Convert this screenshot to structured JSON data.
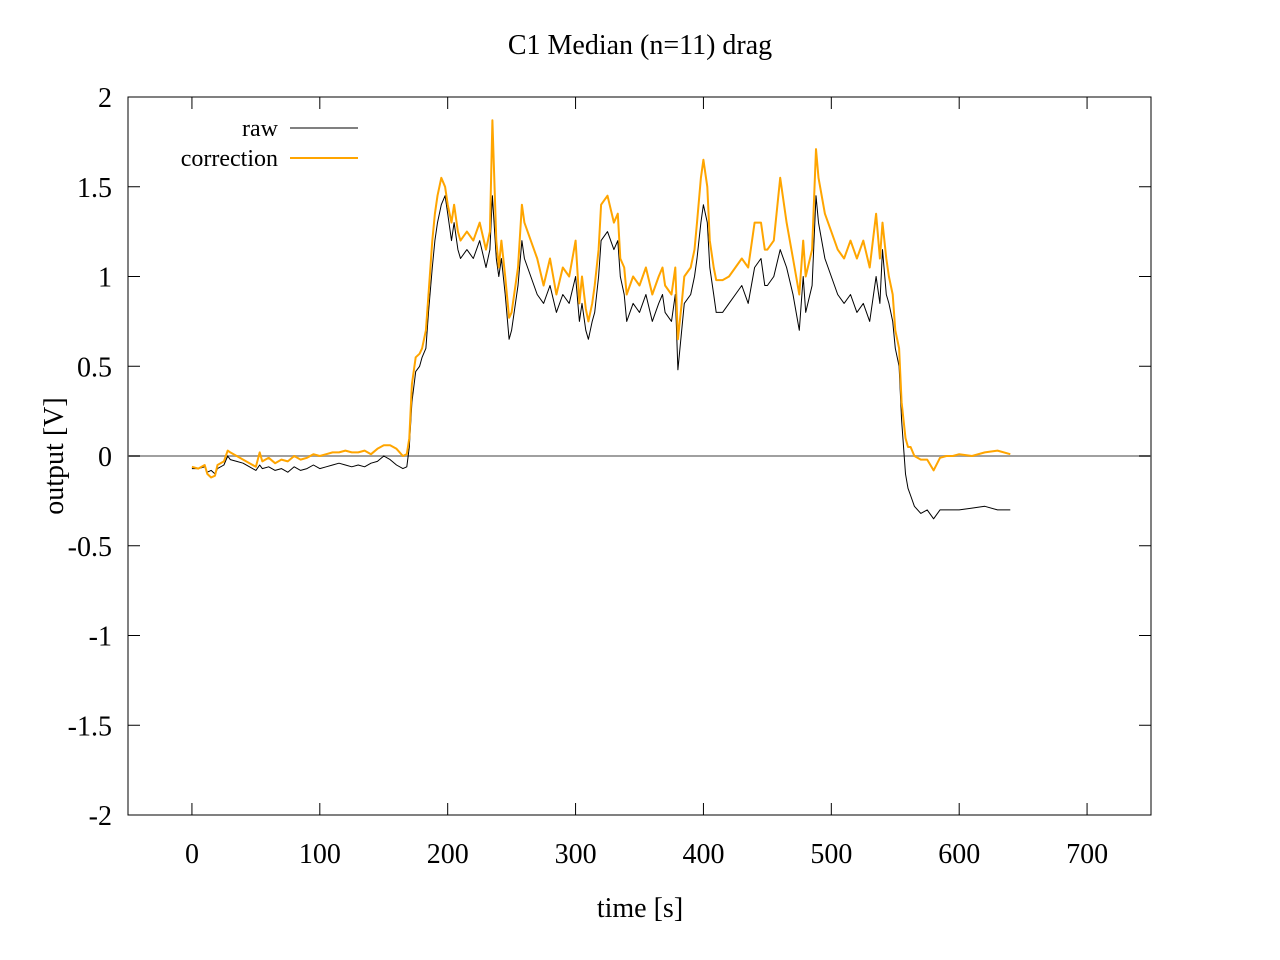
{
  "chart_data": {
    "type": "line",
    "title": "C1  Median (n=11) drag",
    "xlabel": "time [s]",
    "ylabel": "output [V]",
    "xlim": [
      -50,
      750
    ],
    "ylim": [
      -2,
      2
    ],
    "xticks": [
      0,
      100,
      200,
      300,
      400,
      500,
      600,
      700
    ],
    "yticks": [
      2,
      1.5,
      1,
      0.5,
      0,
      -0.5,
      -1,
      -1.5,
      -2
    ],
    "xtick_labels": [
      "0",
      "100",
      "200",
      "300",
      "400",
      "500",
      "600",
      "700"
    ],
    "ytick_labels": [
      "2",
      "1.5",
      "1",
      "0.5",
      "0",
      "-0.5",
      "-1",
      "-1.5",
      "-2"
    ],
    "grid": false,
    "zero_line": {
      "y": 0,
      "color": "#a0a0a0"
    },
    "legend_position": "top-left",
    "series": [
      {
        "name": "raw",
        "color": "#000000",
        "x": [
          0,
          5,
          10,
          12,
          15,
          18,
          20,
          25,
          28,
          30,
          35,
          40,
          45,
          50,
          53,
          55,
          60,
          65,
          70,
          75,
          80,
          85,
          90,
          95,
          100,
          105,
          110,
          115,
          120,
          125,
          130,
          135,
          140,
          145,
          150,
          155,
          160,
          165,
          168,
          170,
          172,
          175,
          178,
          180,
          183,
          185,
          188,
          190,
          192,
          195,
          198,
          200,
          203,
          205,
          208,
          210,
          215,
          220,
          225,
          230,
          233,
          235,
          238,
          240,
          242,
          245,
          248,
          250,
          255,
          258,
          260,
          265,
          270,
          275,
          280,
          285,
          290,
          295,
          300,
          303,
          305,
          308,
          310,
          313,
          315,
          318,
          320,
          325,
          330,
          333,
          335,
          338,
          340,
          345,
          350,
          355,
          360,
          365,
          368,
          370,
          375,
          378,
          380,
          383,
          385,
          390,
          393,
          395,
          398,
          400,
          403,
          405,
          408,
          410,
          415,
          420,
          425,
          430,
          435,
          440,
          445,
          448,
          450,
          455,
          460,
          465,
          470,
          475,
          478,
          480,
          485,
          488,
          490,
          495,
          500,
          505,
          510,
          515,
          520,
          525,
          530,
          535,
          538,
          540,
          543,
          545,
          548,
          550,
          553,
          555,
          558,
          560,
          562,
          565,
          570,
          575,
          580,
          585,
          590,
          595,
          600,
          610,
          620,
          630,
          640
        ],
        "y": [
          -0.07,
          -0.07,
          -0.06,
          -0.09,
          -0.08,
          -0.1,
          -0.07,
          -0.05,
          0.0,
          -0.02,
          -0.03,
          -0.04,
          -0.06,
          -0.08,
          -0.05,
          -0.07,
          -0.06,
          -0.08,
          -0.07,
          -0.09,
          -0.06,
          -0.08,
          -0.07,
          -0.05,
          -0.07,
          -0.06,
          -0.05,
          -0.04,
          -0.05,
          -0.06,
          -0.05,
          -0.06,
          -0.04,
          -0.03,
          0.0,
          -0.02,
          -0.05,
          -0.07,
          -0.06,
          0.05,
          0.3,
          0.47,
          0.5,
          0.55,
          0.6,
          0.8,
          1.05,
          1.2,
          1.3,
          1.4,
          1.45,
          1.35,
          1.2,
          1.3,
          1.15,
          1.1,
          1.15,
          1.1,
          1.2,
          1.05,
          1.15,
          1.45,
          1.1,
          1.0,
          1.1,
          0.9,
          0.65,
          0.7,
          0.95,
          1.2,
          1.1,
          1.0,
          0.9,
          0.85,
          0.95,
          0.8,
          0.9,
          0.85,
          1.0,
          0.75,
          0.85,
          0.7,
          0.65,
          0.75,
          0.8,
          1.0,
          1.2,
          1.25,
          1.15,
          1.2,
          1.0,
          0.9,
          0.75,
          0.85,
          0.8,
          0.9,
          0.75,
          0.85,
          0.9,
          0.8,
          0.75,
          0.9,
          0.48,
          0.7,
          0.85,
          0.9,
          1.0,
          1.1,
          1.3,
          1.4,
          1.3,
          1.05,
          0.9,
          0.8,
          0.8,
          0.85,
          0.9,
          0.95,
          0.85,
          1.05,
          1.1,
          0.95,
          0.95,
          1.0,
          1.15,
          1.05,
          0.9,
          0.7,
          1.0,
          0.8,
          0.95,
          1.45,
          1.3,
          1.1,
          1.0,
          0.9,
          0.85,
          0.9,
          0.8,
          0.85,
          0.75,
          1.0,
          0.85,
          1.15,
          0.9,
          0.85,
          0.75,
          0.6,
          0.5,
          0.2,
          -0.1,
          -0.18,
          -0.22,
          -0.28,
          -0.32,
          -0.3,
          -0.35,
          -0.3,
          -0.3,
          -0.3,
          -0.3,
          -0.29,
          -0.28,
          -0.3,
          -0.3
        ]
      },
      {
        "name": "correction",
        "color": "#ffa500",
        "x": [
          0,
          5,
          10,
          12,
          15,
          18,
          20,
          25,
          28,
          30,
          35,
          40,
          45,
          50,
          53,
          55,
          60,
          65,
          70,
          75,
          80,
          85,
          90,
          95,
          100,
          105,
          110,
          115,
          120,
          125,
          130,
          135,
          140,
          145,
          150,
          155,
          160,
          165,
          168,
          170,
          172,
          175,
          178,
          180,
          183,
          185,
          188,
          190,
          192,
          195,
          198,
          200,
          203,
          205,
          208,
          210,
          215,
          220,
          225,
          230,
          233,
          235,
          238,
          240,
          242,
          245,
          248,
          250,
          255,
          258,
          260,
          265,
          270,
          275,
          280,
          285,
          290,
          295,
          300,
          303,
          305,
          308,
          310,
          313,
          315,
          318,
          320,
          325,
          330,
          333,
          335,
          338,
          340,
          345,
          350,
          355,
          360,
          365,
          368,
          370,
          375,
          378,
          380,
          383,
          385,
          390,
          393,
          395,
          398,
          400,
          403,
          405,
          408,
          410,
          415,
          420,
          425,
          430,
          435,
          440,
          445,
          448,
          450,
          455,
          460,
          465,
          470,
          475,
          478,
          480,
          485,
          488,
          490,
          495,
          500,
          505,
          510,
          515,
          520,
          525,
          530,
          535,
          538,
          540,
          543,
          545,
          548,
          550,
          553,
          555,
          558,
          560,
          562,
          565,
          570,
          575,
          580,
          585,
          590,
          595,
          600,
          610,
          620,
          630,
          640
        ],
        "y": [
          -0.06,
          -0.07,
          -0.05,
          -0.1,
          -0.12,
          -0.11,
          -0.05,
          -0.03,
          0.03,
          0.02,
          0.0,
          -0.02,
          -0.04,
          -0.06,
          0.02,
          -0.03,
          -0.01,
          -0.04,
          -0.02,
          -0.03,
          0.0,
          -0.02,
          -0.01,
          0.01,
          0.0,
          0.01,
          0.02,
          0.02,
          0.03,
          0.02,
          0.02,
          0.03,
          0.01,
          0.04,
          0.06,
          0.06,
          0.04,
          0.0,
          0.01,
          0.1,
          0.4,
          0.55,
          0.57,
          0.6,
          0.7,
          0.9,
          1.2,
          1.35,
          1.45,
          1.55,
          1.5,
          1.4,
          1.3,
          1.4,
          1.25,
          1.2,
          1.25,
          1.2,
          1.3,
          1.15,
          1.25,
          1.87,
          1.2,
          1.05,
          1.2,
          1.0,
          0.77,
          0.8,
          1.05,
          1.4,
          1.3,
          1.2,
          1.1,
          0.95,
          1.1,
          0.9,
          1.05,
          1.0,
          1.2,
          0.85,
          1.0,
          0.82,
          0.75,
          0.85,
          0.95,
          1.15,
          1.4,
          1.45,
          1.3,
          1.35,
          1.1,
          1.05,
          0.9,
          1.0,
          0.95,
          1.05,
          0.9,
          1.0,
          1.05,
          0.95,
          0.9,
          1.05,
          0.65,
          0.85,
          1.0,
          1.05,
          1.15,
          1.3,
          1.55,
          1.65,
          1.5,
          1.2,
          1.05,
          0.98,
          0.98,
          1.0,
          1.05,
          1.1,
          1.05,
          1.3,
          1.3,
          1.15,
          1.15,
          1.2,
          1.55,
          1.3,
          1.1,
          0.9,
          1.2,
          1.0,
          1.15,
          1.71,
          1.55,
          1.35,
          1.25,
          1.15,
          1.1,
          1.2,
          1.1,
          1.2,
          1.05,
          1.35,
          1.1,
          1.3,
          1.1,
          1.0,
          0.9,
          0.7,
          0.6,
          0.3,
          0.1,
          0.05,
          0.05,
          0.0,
          -0.02,
          -0.02,
          -0.08,
          -0.01,
          0.0,
          0.0,
          0.01,
          0.0,
          0.02,
          0.03,
          0.01
        ]
      }
    ]
  }
}
